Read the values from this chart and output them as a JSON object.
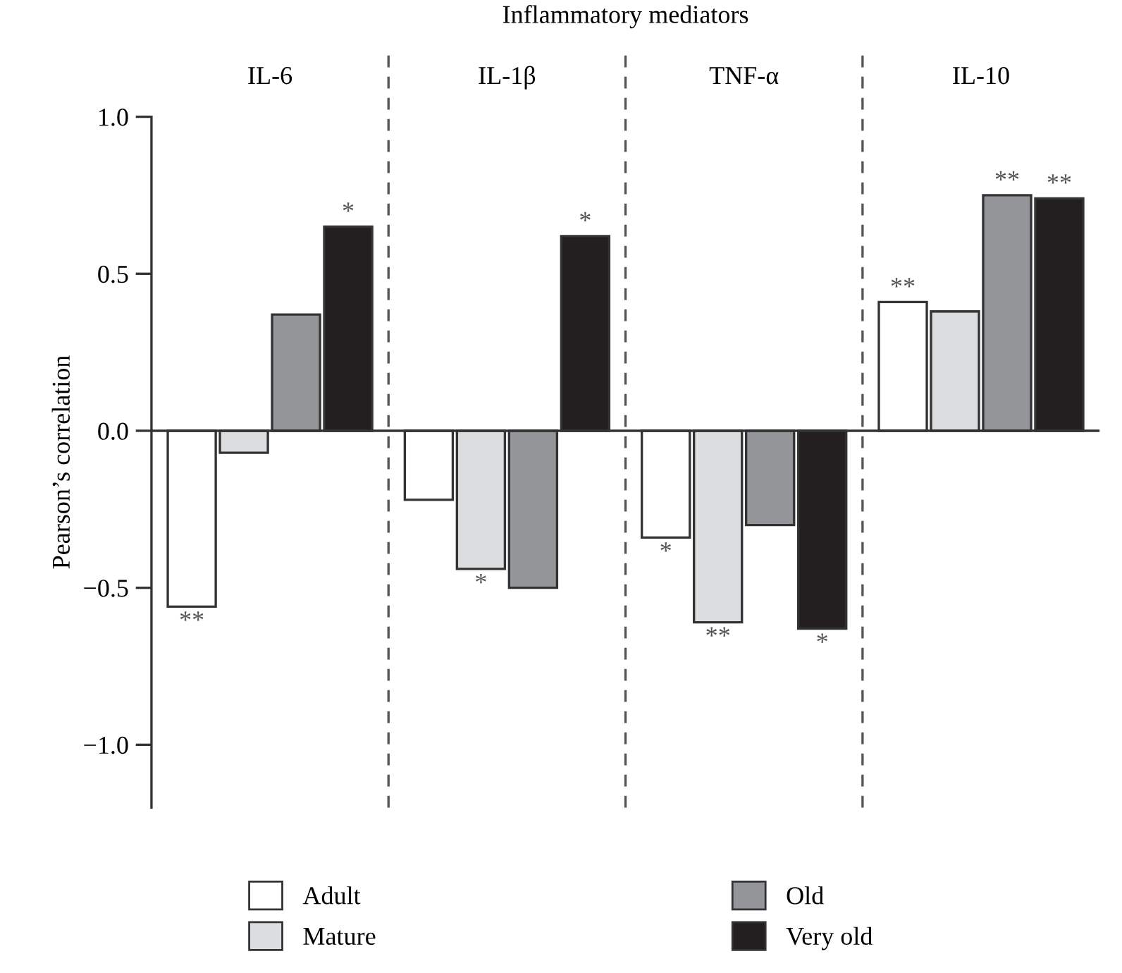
{
  "chart_data": {
    "type": "bar",
    "xlabel": "Inflammatory mediators",
    "ylabel": "Pearson’s correlation",
    "categories": [
      "IL-6",
      "IL-1β",
      "TNF-α",
      "IL-10"
    ],
    "series": [
      {
        "name": "Adult",
        "color": "#ffffff",
        "values": [
          -0.56,
          -0.22,
          -0.34,
          0.41
        ],
        "value_labels": [
          "**",
          null,
          "*",
          "**"
        ]
      },
      {
        "name": "Mature",
        "color": "#dcdddf",
        "values": [
          -0.07,
          -0.44,
          -0.61,
          0.38
        ],
        "value_labels": [
          null,
          "*",
          "**",
          null
        ]
      },
      {
        "name": "Old",
        "color": "#939598",
        "values": [
          0.37,
          -0.5,
          -0.3,
          0.75
        ],
        "value_labels": [
          null,
          null,
          null,
          "**"
        ]
      },
      {
        "name": "Very old",
        "color": "#231f20",
        "values": [
          0.65,
          0.62,
          -0.63,
          0.74
        ],
        "value_labels": [
          "*",
          "*",
          "*",
          "**"
        ]
      }
    ],
    "ylim": [
      -1.2,
      1.0
    ],
    "yticks": [
      {
        "value": -1.0,
        "label": "−1.0"
      },
      {
        "value": -0.5,
        "label": "−0.5"
      },
      {
        "value": 0,
        "label": "0.0"
      },
      {
        "value": 0.5,
        "label": "0.5"
      },
      {
        "value": 1.0,
        "label": "1.0"
      }
    ],
    "grid": false,
    "legend": "bottom"
  }
}
